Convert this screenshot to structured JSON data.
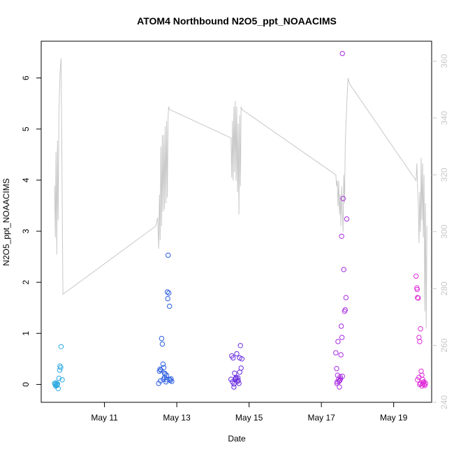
{
  "chart_data": {
    "type": "scatter",
    "title": "ATOM4 Northbound N2O5_ppt_NOAACIMS",
    "xlabel": "Date",
    "ylabel": "N2O5_ppt_NOAACIMS",
    "x_unit": "day of May",
    "xlim": [
      9.25,
      20.05
    ],
    "ylim": [
      -0.35,
      6.72
    ],
    "y2lim": [
      240,
      367
    ],
    "x_ticks": [
      {
        "value": 11,
        "label": "May 11"
      },
      {
        "value": 13,
        "label": "May 13"
      },
      {
        "value": 15,
        "label": "May 15"
      },
      {
        "value": 17,
        "label": "May 17"
      },
      {
        "value": 19,
        "label": "May 19"
      }
    ],
    "y_ticks": [
      0,
      1,
      2,
      3,
      4,
      5,
      6
    ],
    "y2_ticks": [
      240,
      260,
      280,
      300,
      320,
      340,
      360
    ],
    "colors": {
      "axis": "#000000",
      "right_axis": "#c8c8c8",
      "line": "#c8c8c8"
    },
    "grid": false,
    "line_series": {
      "axis": "right",
      "points": [
        [
          9.62,
          316
        ],
        [
          9.64,
          298
        ],
        [
          9.66,
          328
        ],
        [
          9.68,
          292
        ],
        [
          9.7,
          332
        ],
        [
          9.72,
          304
        ],
        [
          9.74,
          342
        ],
        [
          9.77,
          356
        ],
        [
          9.8,
          361
        ],
        [
          9.85,
          278
        ],
        [
          12.42,
          302
        ],
        [
          12.47,
          305
        ],
        [
          12.5,
          294
        ],
        [
          12.52,
          313
        ],
        [
          12.54,
          297
        ],
        [
          12.56,
          330
        ],
        [
          12.58,
          302
        ],
        [
          12.6,
          334
        ],
        [
          12.62,
          307
        ],
        [
          12.64,
          334
        ],
        [
          12.66,
          308
        ],
        [
          12.68,
          337
        ],
        [
          12.7,
          310
        ],
        [
          12.72,
          339
        ],
        [
          12.74,
          312
        ],
        [
          12.76,
          341
        ],
        [
          12.78,
          344
        ],
        [
          12.8,
          343
        ],
        [
          14.5,
          333
        ],
        [
          14.52,
          319
        ],
        [
          14.54,
          339
        ],
        [
          14.56,
          318
        ],
        [
          14.58,
          344
        ],
        [
          14.6,
          321
        ],
        [
          14.62,
          346
        ],
        [
          14.64,
          318
        ],
        [
          14.66,
          344
        ],
        [
          14.68,
          314
        ],
        [
          14.7,
          338
        ],
        [
          14.72,
          306
        ],
        [
          14.74,
          341
        ],
        [
          14.76,
          316
        ],
        [
          14.78,
          344
        ],
        [
          14.8,
          343
        ],
        [
          17.4,
          320
        ],
        [
          17.42,
          316
        ],
        [
          17.44,
          318
        ],
        [
          17.46,
          309
        ],
        [
          17.48,
          318
        ],
        [
          17.5,
          306
        ],
        [
          17.52,
          313
        ],
        [
          17.54,
          302
        ],
        [
          17.56,
          316
        ],
        [
          17.58,
          307
        ],
        [
          17.6,
          300
        ],
        [
          17.62,
          320
        ],
        [
          17.64,
          310
        ],
        [
          17.66,
          330
        ],
        [
          17.68,
          338
        ],
        [
          17.7,
          344
        ],
        [
          17.72,
          350
        ],
        [
          17.74,
          354
        ],
        [
          17.78,
          352
        ],
        [
          19.62,
          318
        ],
        [
          19.64,
          324
        ],
        [
          19.66,
          316
        ],
        [
          19.68,
          310
        ],
        [
          19.7,
          296
        ],
        [
          19.72,
          314
        ],
        [
          19.74,
          300
        ],
        [
          19.76,
          326
        ],
        [
          19.78,
          304
        ],
        [
          19.8,
          324
        ],
        [
          19.82,
          298
        ],
        [
          19.84,
          320
        ],
        [
          19.86,
          272
        ],
        [
          19.88,
          310
        ],
        [
          19.9,
          266
        ],
        [
          19.92,
          302
        ]
      ]
    },
    "series": [
      {
        "color": "#29a8e0",
        "points": [
          [
            9.62,
            0.02
          ],
          [
            9.64,
            0.0
          ],
          [
            9.66,
            0.03
          ],
          [
            9.68,
            -0.02
          ],
          [
            9.7,
            0.01
          ],
          [
            9.72,
            -0.08
          ],
          [
            9.74,
            0.12
          ],
          [
            9.76,
            0.28
          ],
          [
            9.77,
            0.36
          ],
          [
            9.79,
            0.33
          ],
          [
            9.8,
            0.74
          ],
          [
            9.83,
            0.09
          ],
          [
            9.65,
            -0.03
          ],
          [
            9.69,
            0.0
          ]
        ]
      },
      {
        "color": "#2c5ee0",
        "points": [
          [
            12.5,
            0.02
          ],
          [
            12.52,
            0.26
          ],
          [
            12.54,
            0.3
          ],
          [
            12.56,
            0.28
          ],
          [
            12.58,
            0.9
          ],
          [
            12.6,
            0.79
          ],
          [
            12.62,
            0.4
          ],
          [
            12.64,
            0.33
          ],
          [
            12.66,
            0.22
          ],
          [
            12.68,
            0.2
          ],
          [
            12.7,
            0.05
          ],
          [
            12.72,
            0.18
          ],
          [
            12.74,
            1.81
          ],
          [
            12.75,
            1.68
          ],
          [
            12.76,
            2.53
          ],
          [
            12.78,
            1.79
          ],
          [
            12.8,
            1.53
          ],
          [
            12.82,
            0.08
          ],
          [
            12.84,
            0.11
          ],
          [
            12.86,
            0.06
          ],
          [
            12.55,
            0.07
          ],
          [
            12.63,
            0.1
          ],
          [
            12.66,
            0.14
          ],
          [
            12.71,
            0.09
          ],
          [
            12.8,
            0.1
          ]
        ]
      },
      {
        "color": "#6a2ce0",
        "points": [
          [
            14.5,
            0.1
          ],
          [
            14.52,
            0.56
          ],
          [
            14.54,
            0.05
          ],
          [
            14.56,
            0.52
          ],
          [
            14.58,
            -0.05
          ],
          [
            14.6,
            0.22
          ],
          [
            14.62,
            0.1
          ],
          [
            14.64,
            0.14
          ],
          [
            14.66,
            0.6
          ],
          [
            14.68,
            0.06
          ],
          [
            14.7,
            0.08
          ],
          [
            14.72,
            0.02
          ],
          [
            14.74,
            0.52
          ],
          [
            14.76,
            0.76
          ],
          [
            14.78,
            0.32
          ],
          [
            14.8,
            0.5
          ],
          [
            14.58,
            0.01
          ],
          [
            14.63,
            0.12
          ],
          [
            14.69,
            0.13
          ],
          [
            14.74,
            0.24
          ]
        ]
      },
      {
        "color": "#a82ce0",
        "points": [
          [
            17.4,
            0.62
          ],
          [
            17.42,
            0.31
          ],
          [
            17.44,
            0.05
          ],
          [
            17.46,
            0.84
          ],
          [
            17.48,
            0.1
          ],
          [
            17.5,
            -0.05
          ],
          [
            17.52,
            0.15
          ],
          [
            17.54,
            0.58
          ],
          [
            17.56,
            2.9
          ],
          [
            17.58,
            6.48
          ],
          [
            17.6,
            3.64
          ],
          [
            17.62,
            2.25
          ],
          [
            17.64,
            1.43
          ],
          [
            17.66,
            1.46
          ],
          [
            17.68,
            1.7
          ],
          [
            17.7,
            3.24
          ],
          [
            17.55,
            1.14
          ],
          [
            17.57,
            0.92
          ],
          [
            17.45,
            0.18
          ],
          [
            17.49,
            0.06
          ],
          [
            17.53,
            0.11
          ],
          [
            17.58,
            0.16
          ],
          [
            17.43,
            0.02
          ],
          [
            17.51,
            0.08
          ]
        ]
      },
      {
        "color": "#e02cd8",
        "points": [
          [
            19.62,
            2.12
          ],
          [
            19.64,
            1.89
          ],
          [
            19.65,
            1.86
          ],
          [
            19.66,
            1.7
          ],
          [
            19.68,
            1.69
          ],
          [
            19.7,
            0.92
          ],
          [
            19.72,
            0.84
          ],
          [
            19.74,
            1.09
          ],
          [
            19.76,
            0.26
          ],
          [
            19.78,
            0.18
          ],
          [
            19.8,
            0.1
          ],
          [
            19.82,
            0.04
          ],
          [
            19.84,
            0.0
          ],
          [
            19.86,
            -0.02
          ],
          [
            19.88,
            0.02
          ],
          [
            19.66,
            0.09
          ],
          [
            19.7,
            0.14
          ],
          [
            19.74,
            0.02
          ],
          [
            19.78,
            -0.03
          ],
          [
            19.84,
            0.05
          ],
          [
            19.72,
            0.0
          ],
          [
            19.8,
            0.01
          ]
        ]
      }
    ]
  }
}
